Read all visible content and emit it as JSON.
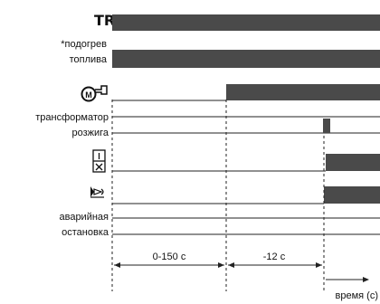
{
  "rows": {
    "tr": {
      "label": "TR"
    },
    "fuel_heating": {
      "label_line1": "*подогрев",
      "label_line2": "топлива"
    },
    "motor": {
      "icon": "motor-icon"
    },
    "ignition_transformer": {
      "label_line1": "трансформатор",
      "label_line2": "розжига"
    },
    "valve": {
      "icon": "valve-icon"
    },
    "flame": {
      "icon": "flame-icon"
    },
    "emergency_stop": {
      "label_line1": "аварийная",
      "label_line2": "остановка"
    }
  },
  "intervals": {
    "preheat": "0-150 с",
    "prepurge": "-12 с"
  },
  "time_axis_label": "время (с)",
  "colors": {
    "bar": "#4a4a4a",
    "line": "#222222"
  }
}
